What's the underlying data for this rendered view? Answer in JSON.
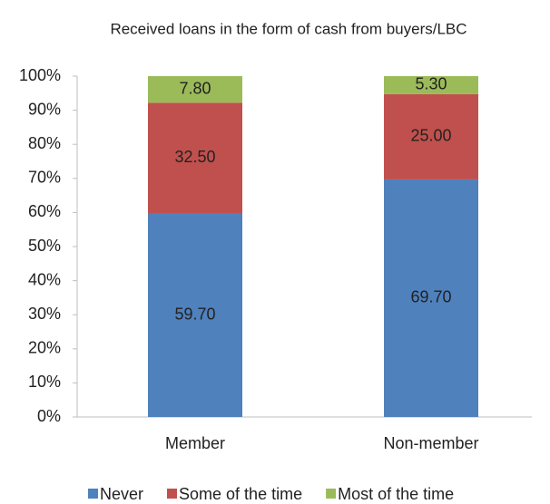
{
  "chart_data": {
    "type": "stacked_bar",
    "title": "Received loans in the form of cash from buyers/LBC",
    "categories": [
      "Member",
      "Non-member"
    ],
    "series": [
      {
        "name": "Never",
        "color": "#4f81bd",
        "values": [
          59.7,
          69.7
        ],
        "value_labels": [
          "59.70",
          "69.70"
        ]
      },
      {
        "name": "Some of the time",
        "color": "#c0504d",
        "values": [
          32.5,
          25.0
        ],
        "value_labels": [
          "32.50",
          "25.00"
        ]
      },
      {
        "name": "Most of the time",
        "color": "#9bbb59",
        "values": [
          7.8,
          5.3
        ],
        "value_labels": [
          "7.80",
          "5.30"
        ]
      }
    ],
    "ylim": [
      0,
      100
    ],
    "yticks": [
      {
        "value": 0,
        "label": "0%"
      },
      {
        "value": 10,
        "label": "10%"
      },
      {
        "value": 20,
        "label": "20%"
      },
      {
        "value": 30,
        "label": "30%"
      },
      {
        "value": 40,
        "label": "40%"
      },
      {
        "value": 50,
        "label": "50%"
      },
      {
        "value": 60,
        "label": "60%"
      },
      {
        "value": 70,
        "label": "70%"
      },
      {
        "value": 80,
        "label": "80%"
      },
      {
        "value": 90,
        "label": "90%"
      },
      {
        "value": 100,
        "label": "100%"
      }
    ],
    "legend": "bottom"
  }
}
